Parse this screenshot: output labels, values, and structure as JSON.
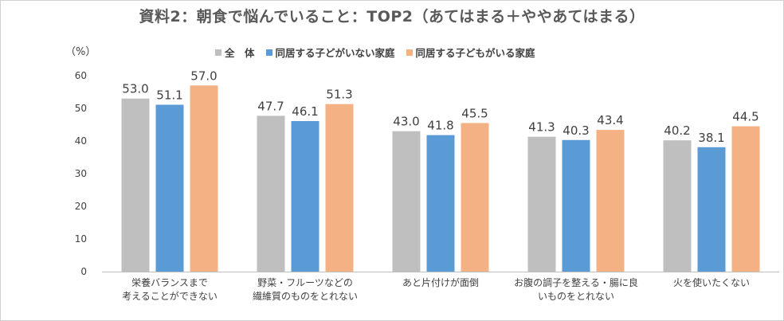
{
  "chart_data": {
    "type": "bar",
    "title": "資料2：朝食で悩んでいること：TOP2（あてはまる＋ややあてはまる）",
    "ylabel": "（%）",
    "ylim": [
      0,
      60
    ],
    "yticks": [
      "0",
      "10",
      "20",
      "30",
      "40",
      "50",
      "60"
    ],
    "grid": false,
    "legend_position": "top",
    "categories": [
      "栄養バランスまで\n考えることができない",
      "野菜・フルーツなどの\n繊維質のものをとれない",
      "あと片付けが面倒",
      "お腹の調子を整える・腸に良\nいものをとれない",
      "火を使いたくない"
    ],
    "series": [
      {
        "name": "全　体",
        "color": "#bfbfbf",
        "values": [
          53.0,
          47.7,
          43.0,
          41.3,
          40.2
        ],
        "labels": [
          "53.0",
          "47.7",
          "43.0",
          "41.3",
          "40.2"
        ]
      },
      {
        "name": "同居する子どがいない家庭",
        "color": "#5b9bd5",
        "values": [
          51.1,
          46.1,
          41.8,
          40.3,
          38.1
        ],
        "labels": [
          "51.1",
          "46.1",
          "41.8",
          "40.3",
          "38.1"
        ]
      },
      {
        "name": "同居する子どもがいる家庭",
        "color": "#f4b183",
        "values": [
          57.0,
          51.3,
          45.5,
          43.4,
          44.5
        ],
        "labels": [
          "57.0",
          "51.3",
          "45.5",
          "43.4",
          "44.5"
        ]
      }
    ]
  }
}
